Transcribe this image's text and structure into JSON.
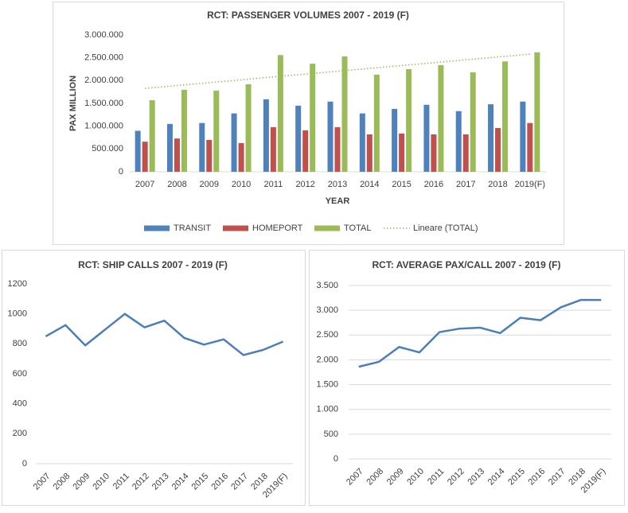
{
  "chart_data": [
    {
      "type": "bar",
      "title": "RCT: PASSENGER VOLUMES 2007 - 2019 (F)",
      "y_label": "PAX MILLION",
      "x_label": "YEAR",
      "categories": [
        "2007",
        "2008",
        "2009",
        "2010",
        "2011",
        "2012",
        "2013",
        "2014",
        "2015",
        "2016",
        "2017",
        "2018",
        "2019(F)"
      ],
      "series": [
        {
          "name": "TRANSIT",
          "color": "#4f81bd",
          "values": [
            900000,
            1050000,
            1070000,
            1280000,
            1590000,
            1450000,
            1540000,
            1280000,
            1380000,
            1470000,
            1330000,
            1480000,
            1540000
          ]
        },
        {
          "name": "HOMEPORT",
          "color": "#c0504d",
          "values": [
            660000,
            730000,
            700000,
            630000,
            980000,
            910000,
            980000,
            820000,
            840000,
            820000,
            820000,
            960000,
            1070000
          ]
        },
        {
          "name": "TOTAL",
          "color": "#9bbb59",
          "values": [
            1570000,
            1800000,
            1780000,
            1920000,
            2560000,
            2370000,
            2530000,
            2130000,
            2250000,
            2340000,
            2180000,
            2420000,
            2620000
          ]
        },
        {
          "name": "Lineare (TOTAL)",
          "color": "#9bbb59",
          "type": "line",
          "dash": "dotted",
          "values": [
            1830000,
            1892500,
            1955000,
            2017500,
            2080000,
            2142500,
            2205000,
            2267500,
            2330000,
            2392500,
            2455000,
            2517500,
            2580000
          ]
        }
      ],
      "ylim": [
        0,
        3000000
      ],
      "yticks": [
        0,
        {
          "value": 500000,
          "label": "500.000"
        },
        {
          "value": 1000000,
          "label": "1.000.000"
        },
        {
          "value": 1500000,
          "label": "1.500.000"
        },
        {
          "value": 2000000,
          "label": "2.000.000"
        },
        {
          "value": 2500000,
          "label": "2.500.000"
        },
        {
          "value": 3000000,
          "label": "3.000.000"
        }
      ],
      "grid": false,
      "legend": "bottom"
    },
    {
      "type": "line",
      "title": "RCT: SHIP CALLS 2007 - 2019 (F)",
      "categories": [
        "2007",
        "2008",
        "2009",
        "2010",
        "2011",
        "2012",
        "2013",
        "2014",
        "2015",
        "2016",
        "2017",
        "2018",
        "2019(F)"
      ],
      "series": [
        {
          "color": "#4a7ebb",
          "values": [
            850,
            925,
            790,
            895,
            1000,
            910,
            955,
            840,
            795,
            830,
            725,
            760,
            815
          ]
        }
      ],
      "ylim": [
        0,
        1200
      ],
      "yticks": [
        0,
        200,
        400,
        600,
        800,
        1000,
        1200
      ],
      "grid": false
    },
    {
      "type": "line",
      "title": "RCT: AVERAGE PAX/CALL 2007 - 2019 (F)",
      "categories": [
        "2007",
        "2008",
        "2009",
        "2010",
        "2011",
        "2012",
        "2013",
        "2014",
        "2015",
        "2016",
        "2017",
        "2018",
        "2019(F)"
      ],
      "series": [
        {
          "color": "#4a7ebb",
          "values": [
            1860,
            1960,
            2260,
            2150,
            2560,
            2630,
            2650,
            2540,
            2850,
            2800,
            3060,
            3210,
            3210
          ]
        }
      ],
      "ylim": [
        0,
        3500
      ],
      "yticks": [
        0,
        {
          "value": 500,
          "label": "500"
        },
        {
          "value": 1000,
          "label": "1.000"
        },
        {
          "value": 1500,
          "label": "1.500"
        },
        {
          "value": 2000,
          "label": "2.000"
        },
        {
          "value": 2500,
          "label": "2.500"
        },
        {
          "value": 3000,
          "label": "3.000"
        },
        {
          "value": 3500,
          "label": "3.500"
        }
      ],
      "grid": true
    }
  ]
}
